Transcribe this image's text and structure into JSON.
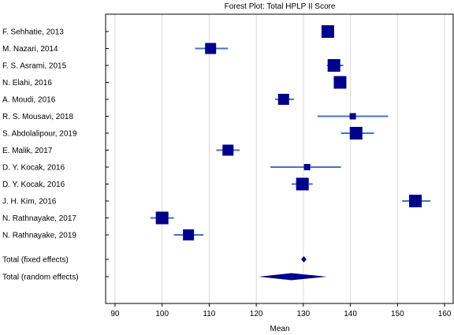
{
  "chart_data": {
    "type": "forest",
    "title": "Forest Plot: Total HPLP II Score",
    "xlabel": "Mean",
    "xlim": [
      88,
      162
    ],
    "xticks": [
      90,
      100,
      110,
      120,
      130,
      140,
      150,
      160
    ],
    "grid": "vertical",
    "colors": {
      "marker": "#00008b",
      "ci": "#4472c4",
      "grid": "#d9d9d9"
    },
    "studies": [
      {
        "label": "F. Sehhatie, 2013",
        "mean": 135.2,
        "lo": 135.2,
        "hi": 135.2,
        "weight": "large"
      },
      {
        "label": "M. Nazari, 2014",
        "mean": 110.3,
        "lo": 107.0,
        "hi": 114.0,
        "weight": "medium"
      },
      {
        "label": "F. S. Asrami, 2015",
        "mean": 136.5,
        "lo": 135.0,
        "hi": 138.5,
        "weight": "large"
      },
      {
        "label": "N. Elahi, 2016",
        "mean": 137.8,
        "lo": 137.8,
        "hi": 137.8,
        "weight": "large"
      },
      {
        "label": "A. Moudi, 2016",
        "mean": 125.8,
        "lo": 124.0,
        "hi": 128.0,
        "weight": "medium"
      },
      {
        "label": "R. S. Mousavi, 2018",
        "mean": 140.5,
        "lo": 133.0,
        "hi": 148.0,
        "weight": "small"
      },
      {
        "label": "S. Abdolalipour, 2019",
        "mean": 141.2,
        "lo": 138.0,
        "hi": 145.0,
        "weight": "large"
      },
      {
        "label": "E. Malik, 2017",
        "mean": 114.0,
        "lo": 111.5,
        "hi": 116.5,
        "weight": "medium"
      },
      {
        "label": "D. Y. Kocak, 2016",
        "mean": 130.8,
        "lo": 123.0,
        "hi": 138.0,
        "weight": "small"
      },
      {
        "label": "D. Y. Kocak, 2016",
        "mean": 129.8,
        "lo": 127.5,
        "hi": 132.0,
        "weight": "large"
      },
      {
        "label": "J. H. Kim, 2016",
        "mean": 153.8,
        "lo": 151.0,
        "hi": 157.0,
        "weight": "large"
      },
      {
        "label": "N. Rathnayake, 2017",
        "mean": 100.0,
        "lo": 97.5,
        "hi": 102.5,
        "weight": "large"
      },
      {
        "label": "N. Rathnayake, 2019",
        "mean": 105.6,
        "lo": 102.5,
        "hi": 108.8,
        "weight": "medium"
      }
    ],
    "pooled": [
      {
        "label": "Total (fixed effects)",
        "mean": 130.1,
        "lo": 129.6,
        "hi": 130.6
      },
      {
        "label": "Total (random effects)",
        "mean": 127.5,
        "lo": 120.5,
        "hi": 135.0
      }
    ]
  }
}
